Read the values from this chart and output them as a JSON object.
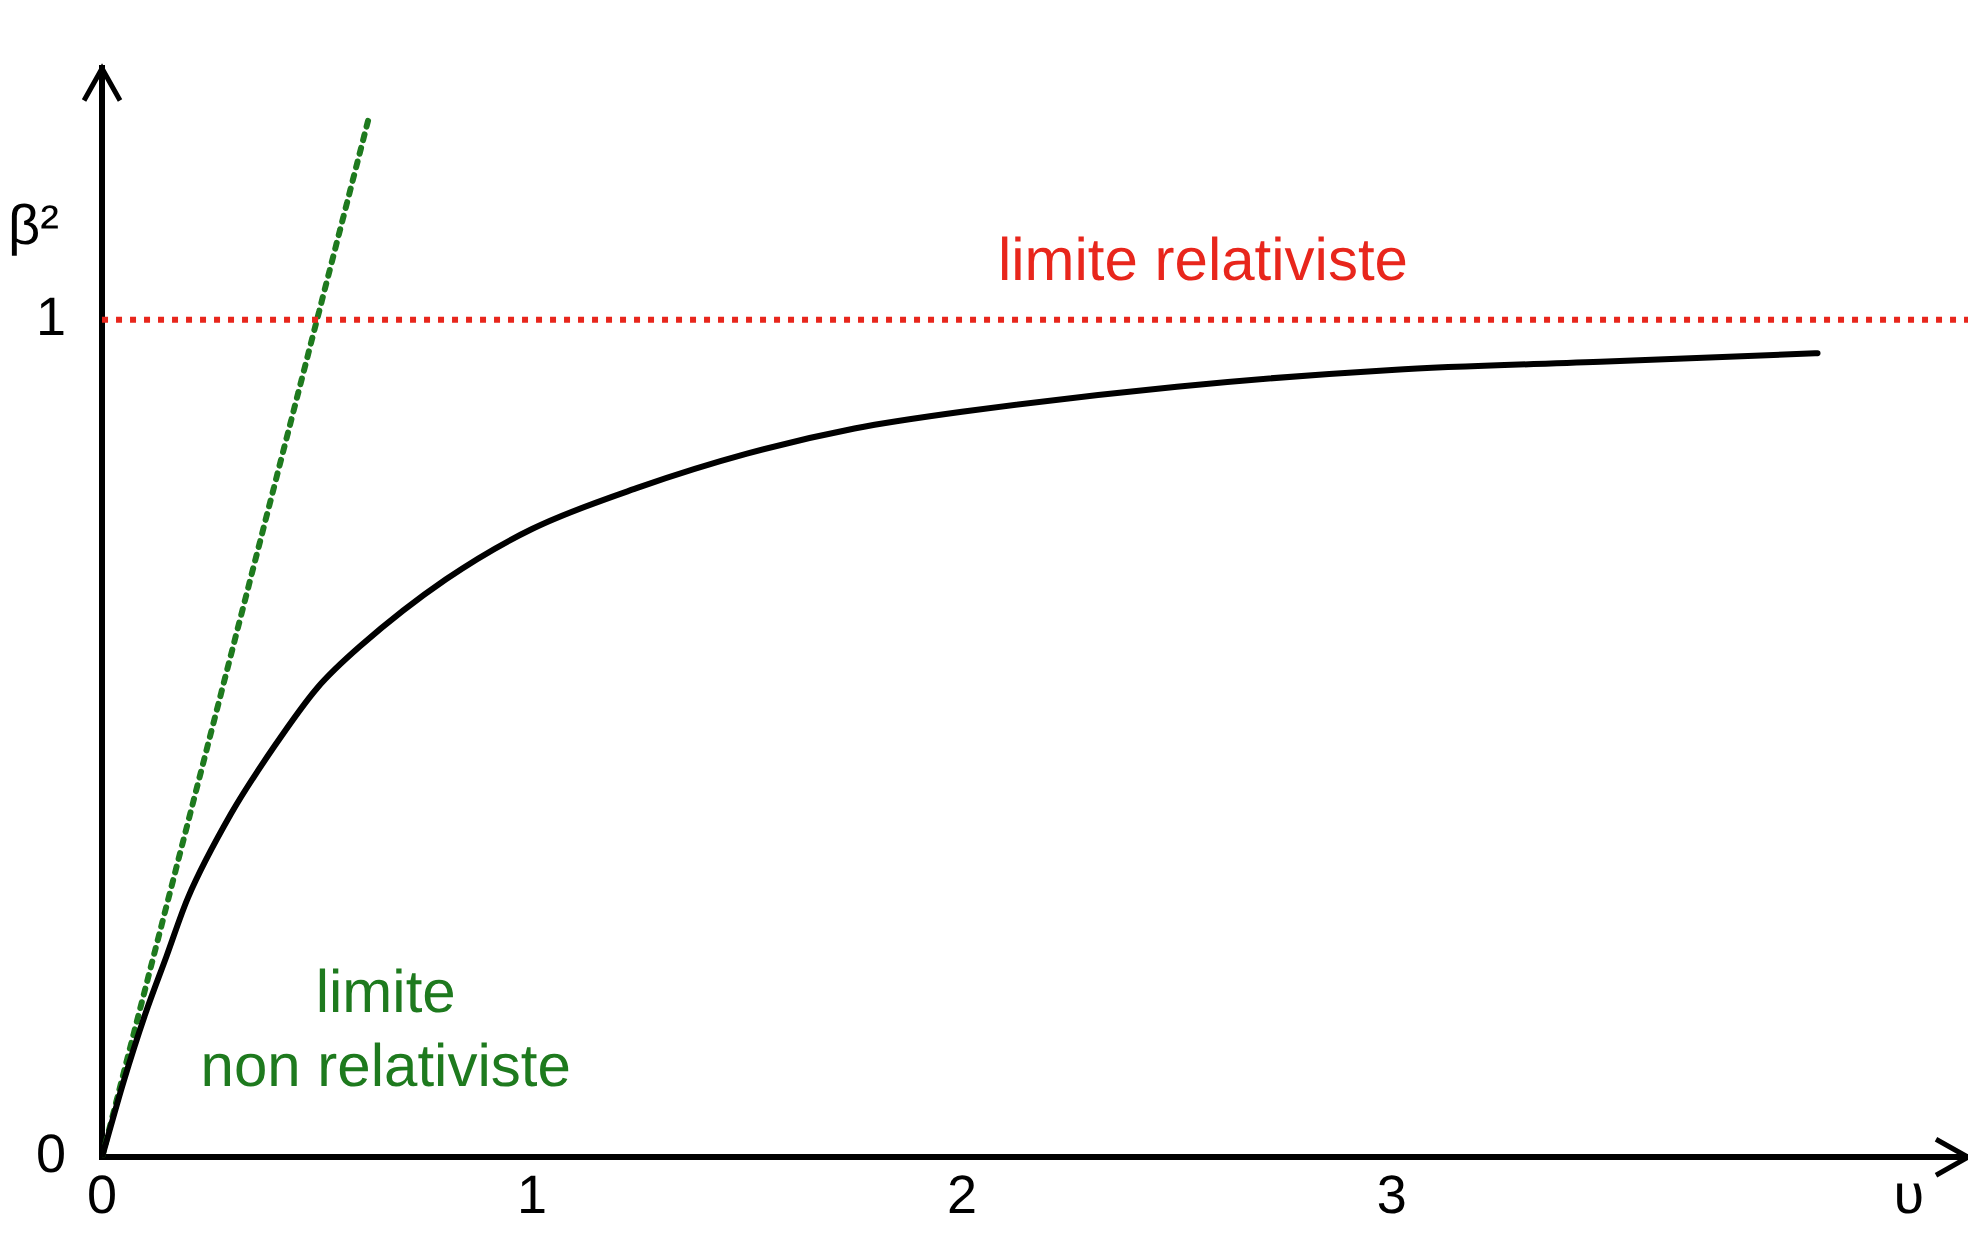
{
  "chart_data": {
    "type": "line",
    "xlabel": "υ",
    "ylabel": "β²",
    "xlim": [
      0,
      4.34
    ],
    "ylim": [
      0,
      1.3
    ],
    "xticks": [
      0,
      1,
      2,
      3
    ],
    "yticks": [
      0,
      1
    ],
    "grid": false,
    "legend": false,
    "marker": "none",
    "series": [
      {
        "color": "#000000",
        "line_style": "solid",
        "x": [
          0,
          0.05,
          0.1,
          0.15,
          0.2,
          0.3,
          0.4,
          0.5,
          0.6,
          0.8,
          1,
          1.25,
          1.5,
          1.75,
          2,
          2.5,
          3,
          3.5,
          3.99
        ],
        "values": [
          0,
          0.09,
          0.17,
          0.24,
          0.31,
          0.41,
          0.49,
          0.56,
          0.61,
          0.69,
          0.75,
          0.8,
          0.84,
          0.87,
          0.89,
          0.92,
          0.94,
          0.95,
          0.96
        ]
      },
      {
        "color": "#1e7a1e",
        "line_style": "dotted",
        "x": [
          0,
          0.62
        ],
        "values": [
          0,
          1.24
        ]
      }
    ],
    "ref_lines": [
      {
        "axis": "y",
        "value": 1,
        "label": "limite relativiste",
        "color": "#e8261c",
        "line_style": "dotted"
      }
    ],
    "annotations": [
      "limite\nnon relativiste"
    ]
  }
}
